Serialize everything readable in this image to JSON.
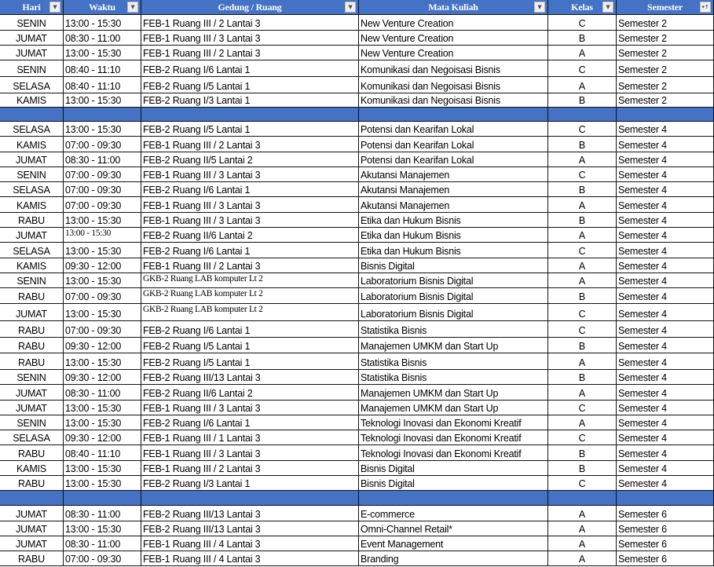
{
  "header": {
    "columns": [
      {
        "label": "Hari",
        "filter_icon": "filter-dropdown-icon"
      },
      {
        "label": "Waktu",
        "filter_icon": "filter-dropdown-icon"
      },
      {
        "label": "Gedung / Ruang",
        "filter_icon": "filter-dropdown-icon"
      },
      {
        "label": "Mata Kuliah",
        "filter_icon": "filter-dropdown-icon"
      },
      {
        "label": "Kelas",
        "filter_icon": "filter-dropdown-icon"
      },
      {
        "label": "Semester",
        "filter_icon": "sort-ascending-filter-icon"
      }
    ],
    "color": "#4472c4"
  },
  "rows": [
    [
      "SENIN",
      "13:00 - 15:30",
      "FEB-1 Ruang III / 2 Lantai 3",
      "New Venture Creation",
      "C",
      "Semester 2"
    ],
    [
      "JUMAT",
      "08:30 - 11:00",
      "FEB-1 Ruang III / 3 Lantai 3",
      "New Venture Creation",
      "B",
      "Semester 2"
    ],
    [
      "JUMAT",
      "13:00 - 15:30",
      "FEB-1 Ruang III / 2 Lantai 3",
      "New Venture Creation",
      "A",
      "Semester 2"
    ],
    [
      "SENIN",
      "08:40 - 11:10",
      "FEB-2 Ruang I/6 Lantai 1",
      "Komunikasi dan Negoisasi Bisnis",
      "C",
      "Semester 2"
    ],
    [
      "SELASA",
      "08:40 - 11:10",
      "FEB-2 Ruang I/5 Lantai 1",
      "Komunikasi dan Negoisasi Bisnis",
      "A",
      "Semester 2"
    ],
    [
      "KAMIS",
      "13:00 - 15:30",
      "FEB-2 Ruang I/3 Lantai 1",
      "Komunikasi dan Negoisasi Bisnis",
      "B",
      "Semester 2"
    ],
    null,
    [
      "SELASA",
      "13:00 - 15:30",
      "FEB-2 Ruang I/5 Lantai 1",
      "Potensi dan Kearifan Lokal",
      "C",
      "Semester 4"
    ],
    [
      "KAMIS",
      "07:00 - 09:30",
      "FEB-1 Ruang III / 2 Lantai 3",
      "Potensi dan Kearifan Lokal",
      "B",
      "Semester 4"
    ],
    [
      "JUMAT",
      "08:30 - 11:00",
      "FEB-2 Ruang II/5 Lantai 2",
      "Potensi dan Kearifan Lokal",
      "A",
      "Semester 4"
    ],
    [
      "SENIN",
      "07:00 - 09:30",
      "FEB-1 Ruang III / 3 Lantai 3",
      "Akutansi Manajemen",
      "C",
      "Semester 4"
    ],
    [
      "SELASA",
      "07:00 - 09:30",
      "FEB-2 Ruang I/6 Lantai 1",
      "Akutansi Manajemen",
      "B",
      "Semester 4"
    ],
    [
      "KAMIS",
      "07:00 - 09:30",
      "FEB-1 Ruang III / 3 Lantai 3",
      "Akutansi Manajemen",
      "A",
      "Semester 4"
    ],
    [
      "RABU",
      "13:00 - 15:30",
      "FEB-1 Ruang III / 3 Lantai 3",
      "Etika dan Hukum Bisnis",
      "B",
      "Semester 4"
    ],
    [
      "JUMAT",
      "13:00 - 15:30",
      "FEB-2 Ruang II/6 Lantai 2",
      "Etika dan Hukum Bisnis",
      "A",
      "Semester 4"
    ],
    [
      "SELASA",
      "13:00 - 15:30",
      "FEB-2 Ruang I/6 Lantai 1",
      "Etika dan Hukum Bisnis",
      "C",
      "Semester 4"
    ],
    [
      "KAMIS",
      "09:30 - 12:00",
      "FEB-1 Ruang III / 2 Lantai 3",
      "Bisnis Digital",
      "A",
      "Semester 4"
    ],
    [
      "SENIN",
      "13:00 - 15:30",
      "GKB-2 Ruang LAB komputer Lt 2",
      "Laboratorium Bisnis Digital",
      "A",
      "Semester 4"
    ],
    [
      "RABU",
      "07:00 - 09:30",
      "GKB-2 Ruang LAB komputer Lt 2",
      "Laboratorium Bisnis Digital",
      "B",
      "Semester 4"
    ],
    [
      "JUMAT",
      "13:00 - 15:30",
      "GKB-2 Ruang LAB komputer Lt 2",
      "Laboratorium Bisnis Digital",
      "C",
      "Semester 4"
    ],
    [
      "RABU",
      "07:00 - 09:30",
      "FEB-2 Ruang I/6 Lantai 1",
      "Statistika Bisnis",
      "C",
      "Semester 4"
    ],
    [
      "RABU",
      "09:30 - 12:00",
      "FEB-2 Ruang I/5 Lantai 1",
      "Manajemen UMKM dan Start Up",
      "B",
      "Semester 4"
    ],
    [
      "RABU",
      "13:00 - 15:30",
      "FEB-2 Ruang I/5 Lantai 1",
      "Statistika Bisnis",
      "A",
      "Semester 4"
    ],
    [
      "SENIN",
      "09:30 - 12:00",
      "FEB-2 Ruang III/13 Lantai 3",
      "Statistika Bisnis",
      "B",
      "Semester 4"
    ],
    [
      "JUMAT",
      "08:30 - 11:00",
      "FEB-2 Ruang II/6 Lantai 2",
      "Manajemen UMKM dan Start Up",
      "A",
      "Semester 4"
    ],
    [
      "JUMAT",
      "13:00 - 15:30",
      "FEB-1 Ruang III / 3 Lantai 3",
      "Manajemen UMKM dan Start Up",
      "C",
      "Semester 4"
    ],
    [
      "SENIN",
      "13:00 - 15:30",
      "FEB-2 Ruang I/6 Lantai 1",
      "Teknologi Inovasi dan Ekonomi Kreatif",
      "A",
      "Semester 4"
    ],
    [
      "SELASA",
      "09:30 - 12:00",
      "FEB-1 Ruang III / 1 Lantai 3",
      "Teknologi Inovasi dan Ekonomi Kreatif",
      "C",
      "Semester 4"
    ],
    [
      "RABU",
      "08:40 - 11:10",
      "FEB-1 Ruang III / 3 Lantai 3",
      "Teknologi Inovasi dan Ekonomi Kreatif",
      "B",
      "Semester 4"
    ],
    [
      "KAMIS",
      "13:00 - 15:30",
      "FEB-1 Ruang III / 2 Lantai 3",
      "Bisnis Digital",
      "B",
      "Semester 4"
    ],
    [
      "RABU",
      "13:00 - 15:30",
      "FEB-2 Ruang I/3 Lantai 1",
      "Bisnis Digital",
      "C",
      "Semester 4"
    ],
    null,
    [
      "JUMAT",
      "08:30 - 11:00",
      "FEB-2 Ruang III/13 Lantai 3",
      "E-commerce",
      "A",
      "Semester 6"
    ],
    [
      "JUMAT",
      "13:00 - 15:30",
      "FEB-2 Ruang III/13 Lantai 3",
      "Omni-Channel Retail*",
      "A",
      "Semester 6"
    ],
    [
      "JUMAT",
      "08:30 - 11:00",
      "FEB-1 Ruang III / 4 Lantai 3",
      "Event Management",
      "A",
      "Semester 6"
    ],
    [
      "RABU",
      "07:00 - 09:30",
      "FEB-1 Ruang III / 4 Lantai 3",
      "Branding",
      "A",
      "Semester 6"
    ]
  ]
}
